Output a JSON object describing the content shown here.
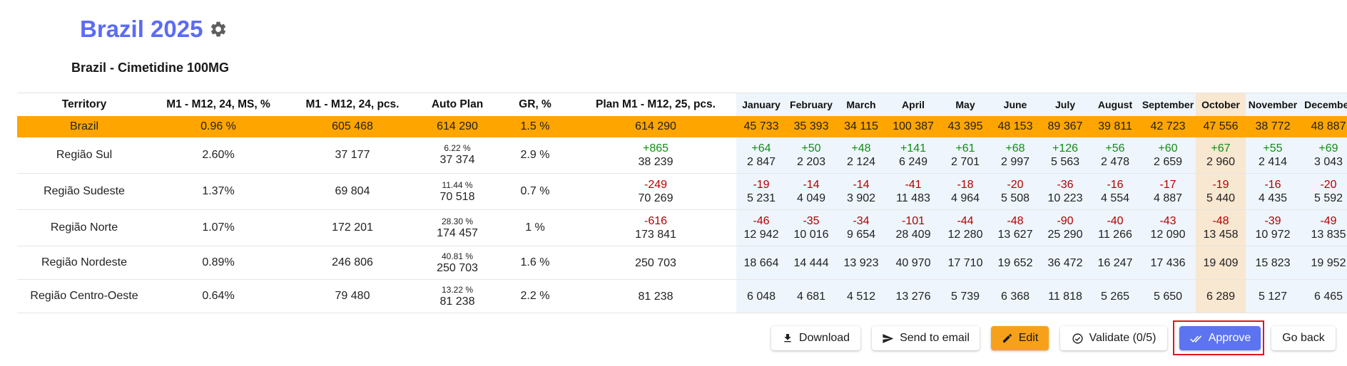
{
  "header": {
    "title": "Brazil 2025",
    "subtitle": "Brazil - Cimetidine 100MG"
  },
  "table": {
    "headers": [
      "Territory",
      "M1 - M12, 24, MS, %",
      "M1 - M12, 24, pcs.",
      "Auto Plan",
      "GR, %",
      "Plan M1 - M12, 25, pcs."
    ],
    "months": [
      "January",
      "February",
      "March",
      "April",
      "May",
      "June",
      "July",
      "August",
      "September",
      "October",
      "November",
      "December"
    ],
    "total": {
      "territory": "Brazil",
      "ms": "0.96 %",
      "pcs": "605 468",
      "auto": "614 290",
      "gr": "1.5 %",
      "plan": "614 290",
      "months": [
        "45 733",
        "35 393",
        "34 115",
        "100 387",
        "43 395",
        "48 153",
        "89 367",
        "39 811",
        "42 723",
        "47 556",
        "38 772",
        "48 887"
      ]
    },
    "rows": [
      {
        "territory": "Região Sul",
        "ms": "2.60%",
        "pcs": "37 177",
        "auto_pct": "6.22 %",
        "auto": "37 374",
        "gr": "2.9 %",
        "plan_delta": "+865",
        "plan": "38 239",
        "month_deltas": [
          "+64",
          "+50",
          "+48",
          "+141",
          "+61",
          "+68",
          "+126",
          "+56",
          "+60",
          "+67",
          "+55",
          "+69"
        ],
        "months": [
          "2 847",
          "2 203",
          "2 124",
          "6 249",
          "2 701",
          "2 997",
          "5 563",
          "2 478",
          "2 659",
          "2 960",
          "2 414",
          "3 043"
        ]
      },
      {
        "territory": "Região Sudeste",
        "ms": "1.37%",
        "pcs": "69 804",
        "auto_pct": "11.44 %",
        "auto": "70 518",
        "gr": "0.7 %",
        "plan_delta": "-249",
        "plan": "70 269",
        "month_deltas": [
          "-19",
          "-14",
          "-14",
          "-41",
          "-18",
          "-20",
          "-36",
          "-16",
          "-17",
          "-19",
          "-16",
          "-20"
        ],
        "months": [
          "5 231",
          "4 049",
          "3 902",
          "11 483",
          "4 964",
          "5 508",
          "10 223",
          "4 554",
          "4 887",
          "5 440",
          "4 435",
          "5 592"
        ]
      },
      {
        "territory": "Região Norte",
        "ms": "1.07%",
        "pcs": "172 201",
        "auto_pct": "28.30 %",
        "auto": "174 457",
        "gr": "1 %",
        "plan_delta": "-616",
        "plan": "173 841",
        "month_deltas": [
          "-46",
          "-35",
          "-34",
          "-101",
          "-44",
          "-48",
          "-90",
          "-40",
          "-43",
          "-48",
          "-39",
          "-49"
        ],
        "months": [
          "12 942",
          "10 016",
          "9 654",
          "28 409",
          "12 280",
          "13 627",
          "25 290",
          "11 266",
          "12 090",
          "13 458",
          "10 972",
          "13 835"
        ]
      },
      {
        "territory": "Região Nordeste",
        "ms": "0.89%",
        "pcs": "246 806",
        "auto_pct": "40.81 %",
        "auto": "250 703",
        "gr": "1.6 %",
        "plan_delta": null,
        "plan": "250 703",
        "month_deltas": null,
        "months": [
          "18 664",
          "14 444",
          "13 923",
          "40 970",
          "17 710",
          "19 652",
          "36 472",
          "16 247",
          "17 436",
          "19 409",
          "15 823",
          "19 952"
        ]
      },
      {
        "territory": "Região Centro-Oeste",
        "ms": "0.64%",
        "pcs": "79 480",
        "auto_pct": "13.22 %",
        "auto": "81 238",
        "gr": "2.2 %",
        "plan_delta": null,
        "plan": "81 238",
        "month_deltas": null,
        "months": [
          "6 048",
          "4 681",
          "4 512",
          "13 276",
          "5 739",
          "6 368",
          "11 818",
          "5 265",
          "5 650",
          "6 289",
          "5 127",
          "6 465"
        ]
      }
    ]
  },
  "buttons": {
    "download": "Download",
    "send_email": "Send to email",
    "edit": "Edit",
    "validate": "Validate (0/5)",
    "approve": "Approve",
    "go_back": "Go back"
  },
  "colors": {
    "title": "#5b6cf2",
    "total_row": "#ffa500",
    "positive": "#128c16",
    "negative": "#b40000",
    "month_bg": "#eef5fc",
    "october_bg": "#f8e7d1",
    "edit_button": "#f7a11a",
    "approve_button": "#5c74f0",
    "highlight_outline": "#e0151b"
  },
  "icons": {
    "settings": "gear-icon",
    "download": "download-icon",
    "send": "send-icon",
    "edit": "pencil-icon",
    "validate": "check-circle-icon",
    "approve": "double-check-icon"
  }
}
